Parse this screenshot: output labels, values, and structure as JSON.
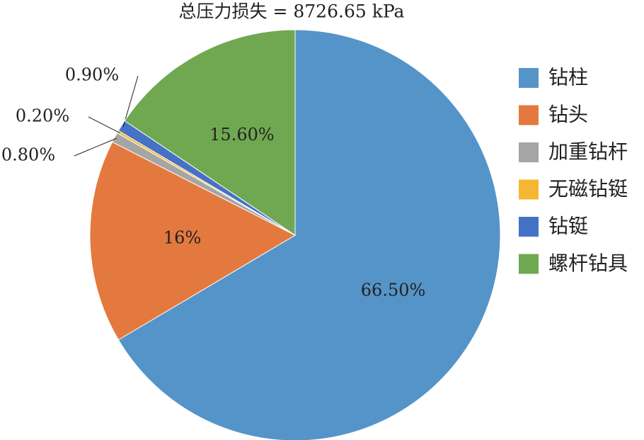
{
  "chart_data": {
    "type": "pie",
    "title": "总压力损失 = 8726.65 kPa",
    "categories": [
      "钻柱",
      "钻头",
      "加重钻杆",
      "无磁钻铤",
      "钻铤",
      "螺杆钻具"
    ],
    "values": [
      66.5,
      16,
      0.8,
      0.2,
      0.9,
      15.6
    ],
    "value_labels": [
      "66.50%",
      "16%",
      "0.80%",
      "0.20%",
      "0.90%",
      "15.60%"
    ],
    "colors": [
      "#5594c8",
      "#e4793f",
      "#a5a5a5",
      "#f5b731",
      "#4472c4",
      "#70a851"
    ],
    "legend": "right"
  }
}
